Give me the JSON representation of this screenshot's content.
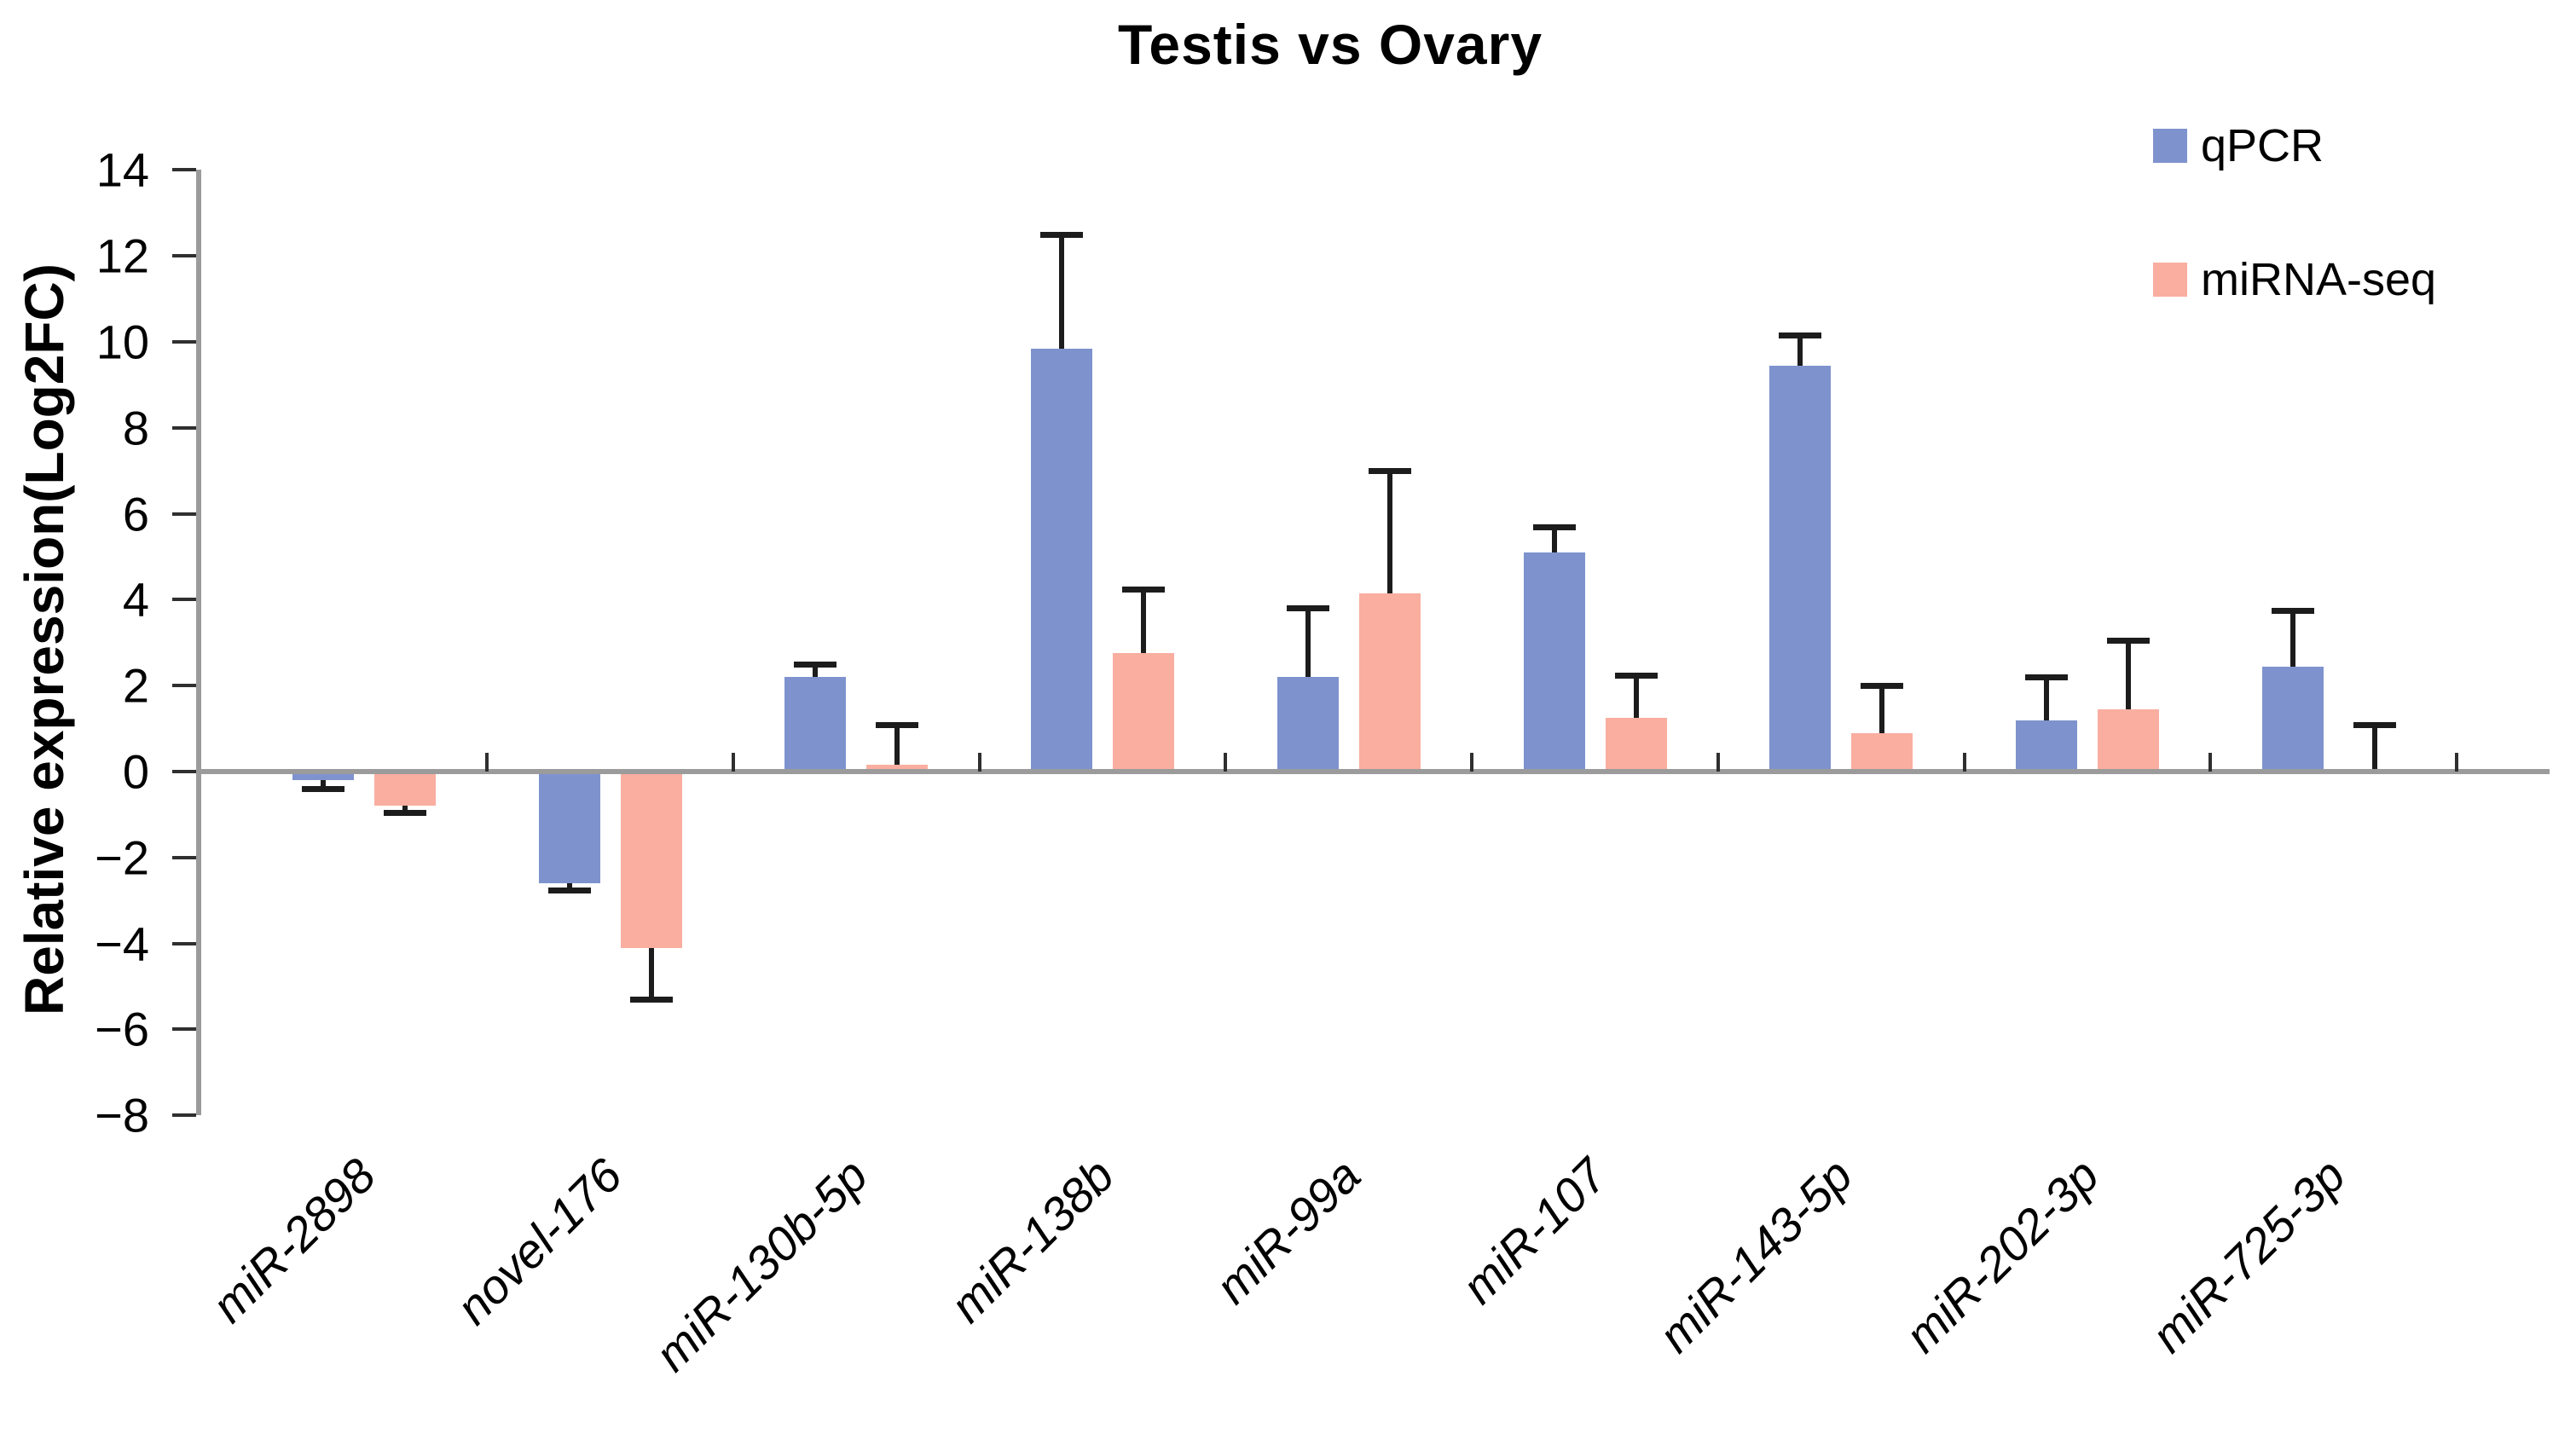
{
  "title": "Testis vs Ovary",
  "y_axis_title": "Relative expression(Log2FC)",
  "legend": {
    "position": "top-right",
    "items": [
      {
        "label": "qPCR",
        "color": "#7E93CE"
      },
      {
        "label": "miRNA-seq",
        "color": "#F9AEA0"
      }
    ]
  },
  "colors": {
    "qpcr_blue": "#7E93CE",
    "mirnaseq_pink": "#F9AEA0",
    "axis_gray": "#9b9b9b",
    "tick_black": "#2f2f2f",
    "error_bar_black": "#1c1c1c"
  },
  "chart_data": {
    "type": "bar",
    "title": "Testis vs Ovary",
    "xlabel": "",
    "ylabel": "Relative expression(Log2FC)",
    "ylim": [
      -8,
      14
    ],
    "ytick_step": 2,
    "yticks": [
      14,
      12,
      10,
      8,
      6,
      4,
      2,
      0,
      -2,
      -4,
      -6,
      -8
    ],
    "grid": false,
    "error_bars": true,
    "legend_position": "top-right",
    "categories": [
      "miR-2898",
      "novel-176",
      "miR-130b-5p",
      "miR-138b",
      "miR-99a",
      "miR-107",
      "miR-143-5p",
      "miR-202-3p",
      "miR-725-3p"
    ],
    "series": [
      {
        "name": "qPCR",
        "color": "#7E93CE",
        "values": [
          -0.2,
          -2.6,
          2.2,
          9.85,
          2.2,
          5.1,
          9.45,
          1.2,
          2.45
        ],
        "errors_signed": [
          -0.2,
          -0.15,
          0.3,
          2.65,
          1.6,
          0.6,
          0.7,
          1.0,
          1.3
        ]
      },
      {
        "name": "miRNA-seq",
        "color": "#F9AEA0",
        "values": [
          -0.8,
          -4.1,
          0.15,
          2.75,
          4.15,
          1.25,
          0.9,
          1.45,
          -0.05
        ],
        "errors_signed": [
          -0.15,
          -1.2,
          0.95,
          1.5,
          2.85,
          1.0,
          1.1,
          1.6,
          1.15
        ]
      }
    ]
  }
}
